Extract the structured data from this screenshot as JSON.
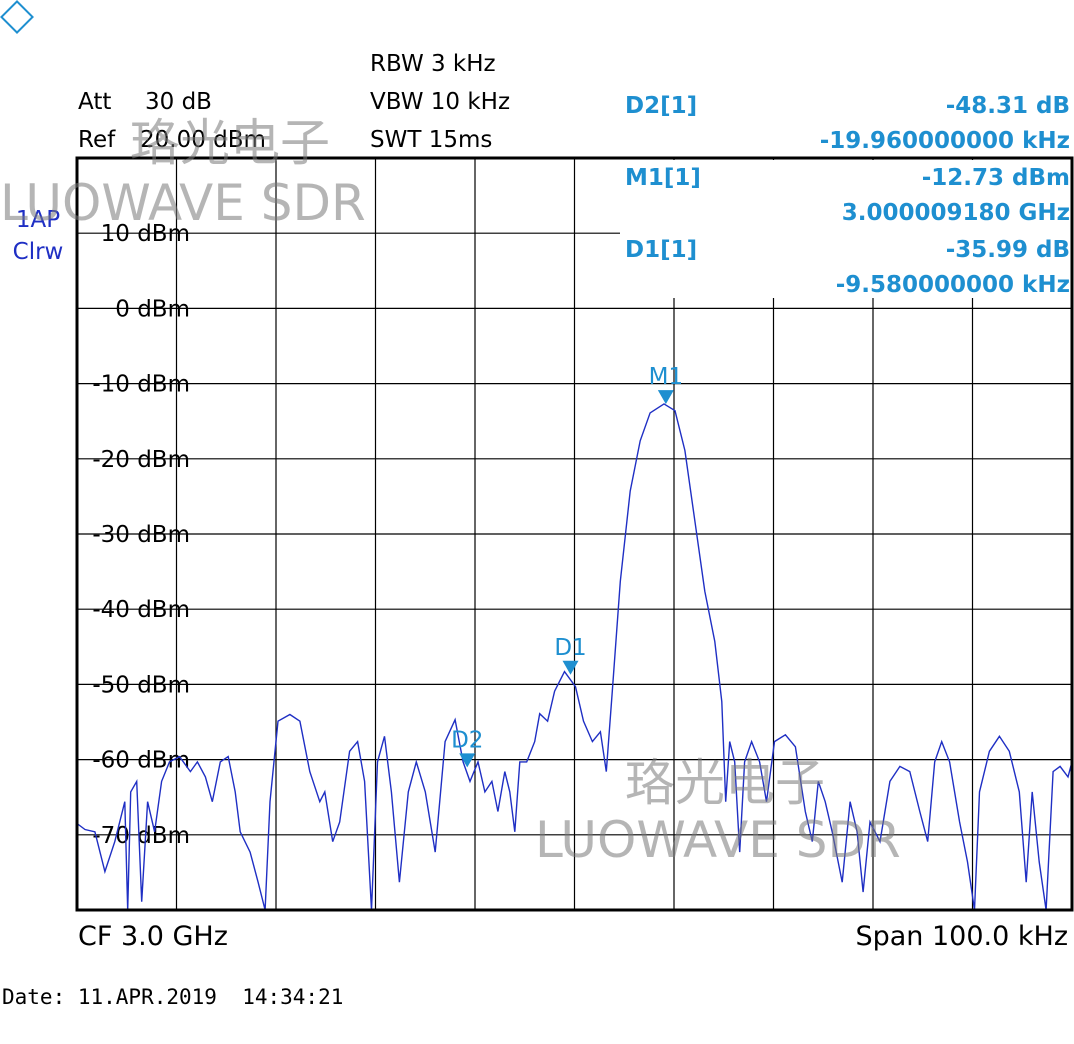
{
  "header": {
    "att_label": "Att",
    "att_value": "30 dB",
    "ref_label": "Ref",
    "ref_value": "20.00 dBm",
    "rbw": "RBW 3 kHz",
    "vbw": "VBW 10 kHz",
    "swt": "SWT 15ms",
    "trace_mode": "1AP",
    "trace_detector": "Clrw"
  },
  "readout": [
    {
      "name": "D2[1]",
      "level": "-48.31 dB",
      "freq": "-19.960000000 kHz"
    },
    {
      "name": "M1[1]",
      "level": "-12.73 dBm",
      "freq": "3.000009180 GHz"
    },
    {
      "name": "D1[1]",
      "level": "-35.99 dB",
      "freq": "-9.580000000 kHz"
    }
  ],
  "footer": {
    "center": "CF 3.0 GHz",
    "span": "Span 100.0 kHz",
    "date": "Date: 11.APR.2019  14:34:21"
  },
  "watermark": {
    "cn": "珞光电子",
    "en": "LUOWAVE SDR"
  },
  "chart_data": {
    "type": "line",
    "xlim": [
      -50,
      50
    ],
    "ylim": [
      -80,
      20
    ],
    "yticks": [
      {
        "value": 10,
        "label": "10 dBm"
      },
      {
        "value": 0,
        "label": "0 dBm"
      },
      {
        "value": -10,
        "label": "-10 dBm"
      },
      {
        "value": -20,
        "label": "-20 dBm"
      },
      {
        "value": -30,
        "label": "-30 dBm"
      },
      {
        "value": -40,
        "label": "-40 dBm"
      },
      {
        "value": -50,
        "label": "-50 dBm"
      },
      {
        "value": -60,
        "label": "-60 dBm"
      },
      {
        "value": -70,
        "label": "-70 dBm"
      }
    ],
    "grid": true,
    "x": [
      -50,
      -49.2,
      -48.2,
      -47.2,
      -46.2,
      -45.2,
      -44.9,
      -44.6,
      -44.0,
      -43.5,
      -42.9,
      -42.2,
      -41.5,
      -40.7,
      -39.7,
      -38.6,
      -37.9,
      -37.1,
      -36.4,
      -35.6,
      -34.8,
      -34.1,
      -33.6,
      -32.6,
      -31.8,
      -31.1,
      -30.6,
      -29.8,
      -28.6,
      -27.6,
      -26.6,
      -25.6,
      -25.1,
      -24.3,
      -23.6,
      -22.6,
      -21.8,
      -21.1,
      -20.4,
      -19.8,
      -19.1,
      -18.4,
      -17.6,
      -16.7,
      -15.9,
      -15.0,
      -14.0,
      -13.0,
      -12.0,
      -11.2,
      -10.5,
      -9.7,
      -9.0,
      -8.3,
      -7.7,
      -7.0,
      -6.5,
      -6.0,
      -5.5,
      -4.8,
      -4.0,
      -3.5,
      -2.7,
      -2.0,
      -1.0,
      0.1,
      0.9,
      1.8,
      2.6,
      3.2,
      3.8,
      4.6,
      5.6,
      6.6,
      7.6,
      9.0,
      10.1,
      11.1,
      12.1,
      13.1,
      14.1,
      14.8,
      15.2,
      15.6,
      16.1,
      16.6,
      17.1,
      17.8,
      18.6,
      19.3,
      20.1,
      21.2,
      22.2,
      23.2,
      23.9,
      24.5,
      25.2,
      25.9,
      26.9,
      27.7,
      28.4,
      29.0,
      29.7,
      30.7,
      31.7,
      32.7,
      33.7,
      34.7,
      35.5,
      36.2,
      36.9,
      37.7,
      38.7,
      39.5,
      40.2,
      40.7,
      41.7,
      42.7,
      43.7,
      44.7,
      45.4,
      46.0,
      46.7,
      47.4,
      48.1,
      48.8,
      49.6,
      50.0
    ],
    "series": [
      {
        "name": "1AP",
        "color": "#1f2fc4",
        "values": [
          -68.5,
          -69.3,
          -69.6,
          -74.9,
          -70.9,
          -65.6,
          -80,
          -64.3,
          -62.9,
          -78.9,
          -65.6,
          -69.6,
          -62.9,
          -60.3,
          -59.6,
          -61.6,
          -60.3,
          -62.3,
          -65.6,
          -60.3,
          -59.6,
          -64.3,
          -69.6,
          -72.3,
          -76.3,
          -80,
          -65.6,
          -54.9,
          -54.0,
          -54.9,
          -61.6,
          -65.6,
          -64.3,
          -70.9,
          -68.3,
          -58.9,
          -57.6,
          -62.9,
          -80,
          -60.3,
          -56.9,
          -64.3,
          -76.3,
          -64.3,
          -60.3,
          -64.3,
          -72.3,
          -57.6,
          -54.7,
          -60.3,
          -62.9,
          -60.3,
          -64.3,
          -62.9,
          -66.9,
          -61.6,
          -64.3,
          -69.6,
          -60.3,
          -60.3,
          -57.6,
          -53.9,
          -54.9,
          -50.9,
          -48.3,
          -50.3,
          -54.9,
          -57.6,
          -56.3,
          -61.6,
          -50.9,
          -36.3,
          -24.3,
          -17.6,
          -13.9,
          -12.7,
          -13.6,
          -18.9,
          -28.3,
          -37.6,
          -44.3,
          -52.3,
          -65.6,
          -57.6,
          -60.3,
          -72.3,
          -60.3,
          -57.6,
          -60.3,
          -65.6,
          -57.6,
          -56.7,
          -58.3,
          -66.9,
          -70.9,
          -62.9,
          -65.6,
          -69.6,
          -76.3,
          -65.6,
          -69.6,
          -77.6,
          -68.3,
          -70.9,
          -62.9,
          -60.9,
          -61.6,
          -66.9,
          -70.9,
          -60.3,
          -57.6,
          -60.3,
          -68.3,
          -73.6,
          -80,
          -64.3,
          -58.9,
          -56.9,
          -58.9,
          -64.3,
          -76.3,
          -64.3,
          -73.6,
          -80,
          -61.6,
          -60.9,
          -62.3,
          -60.3
        ]
      }
    ],
    "markers": [
      {
        "label": "M1",
        "x": 9.18,
        "y": -12.73,
        "color": "#1e8fd0"
      },
      {
        "label": "D1",
        "x": -0.4,
        "y": -48.72,
        "color": "#1e8fd0"
      },
      {
        "label": "D2",
        "x": -10.78,
        "y": -61.04,
        "color": "#1e8fd0"
      }
    ]
  }
}
